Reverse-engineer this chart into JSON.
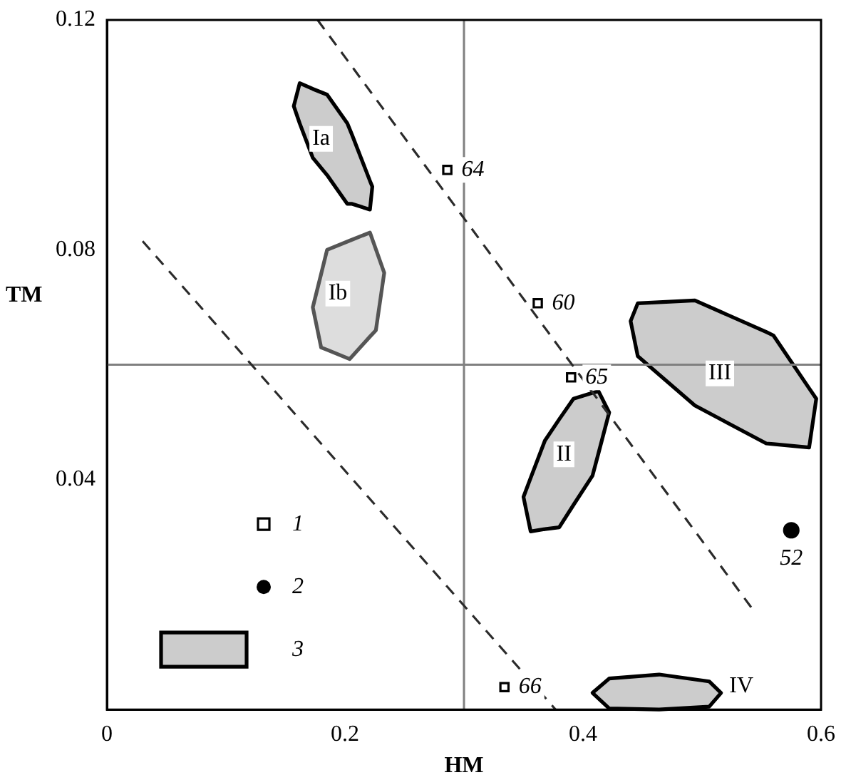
{
  "chart_data": {
    "type": "scatter",
    "xlabel": "HM",
    "ylabel": "TM",
    "xlim": [
      0,
      0.6
    ],
    "xticks": [
      0,
      0.2,
      0.4,
      0.6
    ],
    "ylim": [
      0,
      0.12
    ],
    "yticks": [
      0.04,
      0.08,
      0.12
    ],
    "grid": false,
    "legend": "bottom left",
    "ref_lines": [
      {
        "axis": "x",
        "value": 0.3,
        "color": "#808080"
      },
      {
        "axis": "y",
        "value": 0.06,
        "color": "#808080"
      }
    ],
    "series": [
      {
        "name": "1",
        "type": "scatter",
        "marker": "square",
        "color": "#000000",
        "x": [
          0.286,
          0.362,
          0.39,
          0.334
        ],
        "values": [
          0.0939,
          0.0707,
          0.0578,
          0.0039
        ]
      },
      {
        "name": "2",
        "type": "scatter",
        "marker": "circle",
        "color": "#000000",
        "x": [
          0.575
        ],
        "values": [
          0.0312
        ]
      },
      {
        "name": "3",
        "type": "line",
        "marker": "none",
        "color": "#000000",
        "x": [
          0.157,
          0.162,
          0.173,
          0.185,
          0.202,
          0.206,
          0.221,
          0.223,
          null,
          0.35,
          0.356,
          0.368,
          0.38,
          0.392,
          0.408,
          0.413,
          0.422,
          null,
          0.44,
          0.446,
          0.494,
          0.554,
          0.56,
          0.59,
          0.596,
          null,
          0.408,
          0.422,
          0.464,
          0.506,
          0.516
        ],
        "values": [
          null,
          null,
          null,
          null,
          null,
          null,
          null,
          null,
          null,
          null,
          null,
          null,
          null,
          null,
          null,
          null,
          null,
          null,
          null,
          null,
          null,
          null,
          null,
          null,
          null,
          null,
          null,
          null,
          null,
          null,
          null
        ],
        "upper": [
          0.105,
          0.109,
          0.108,
          0.107,
          0.102,
          0.1,
          0.092,
          0.091,
          null,
          0.037,
          0.0403,
          0.0468,
          0.0505,
          0.0541,
          0.0551,
          0.0554,
          0.0517,
          null,
          0.0676,
          0.0707,
          0.0712,
          0.0657,
          0.0651,
          0.0559,
          0.0541,
          null,
          0.0029,
          0.0054,
          0.0061,
          0.0049,
          0.0029
        ],
        "lower": [
          0.105,
          0.102,
          0.096,
          0.093,
          0.088,
          0.088,
          0.087,
          0.091,
          null,
          0.037,
          0.031,
          0.0314,
          0.0317,
          0.0356,
          0.0407,
          0.0446,
          0.0517,
          null,
          0.0676,
          0.0615,
          0.0529,
          0.0463,
          0.0462,
          0.0456,
          0.0541,
          null,
          0.0029,
          0.0002,
          0,
          0.0005,
          0.0029
        ]
      },
      {
        "type": "line",
        "marker": "none",
        "color": "#555555",
        "x": [
          0.173,
          0.18,
          0.185,
          0.204,
          0.221,
          0.226,
          0.233
        ],
        "values": [
          null,
          null,
          null,
          null,
          null,
          null,
          null
        ],
        "upper": [
          0.07,
          0.0758,
          0.08,
          0.0816,
          0.083,
          0.0801,
          0.076
        ],
        "lower": [
          0.07,
          0.063,
          0.0626,
          0.061,
          0.0649,
          0.066,
          0.076
        ]
      },
      {
        "type": "line",
        "marker": "none",
        "line_style": "dashed",
        "color": "#2b2b2b",
        "x": [
          0.03,
          0.377,
          null,
          0.177,
          0.542
        ],
        "values": [
          0.0815,
          0,
          null,
          0.12,
          0.0176
        ]
      }
    ],
    "annotations": [
      {
        "text": "Ia",
        "x": 0.18,
        "y": 0.0993
      },
      {
        "text": "Ib",
        "x": 0.194,
        "y": 0.0724
      },
      {
        "text": "II",
        "x": 0.384,
        "y": 0.0444
      },
      {
        "text": "III",
        "x": 0.515,
        "y": 0.0585
      },
      {
        "text": "IV",
        "x": 0.533,
        "y": 0.0041
      },
      {
        "text": "64",
        "x": 0.286,
        "y": 0.0939
      },
      {
        "text": "60",
        "x": 0.362,
        "y": 0.0707
      },
      {
        "text": "65",
        "x": 0.39,
        "y": 0.0578
      },
      {
        "text": "66",
        "x": 0.334,
        "y": 0.0039
      },
      {
        "text": "52",
        "x": 0.575,
        "y": 0.0312
      }
    ]
  }
}
